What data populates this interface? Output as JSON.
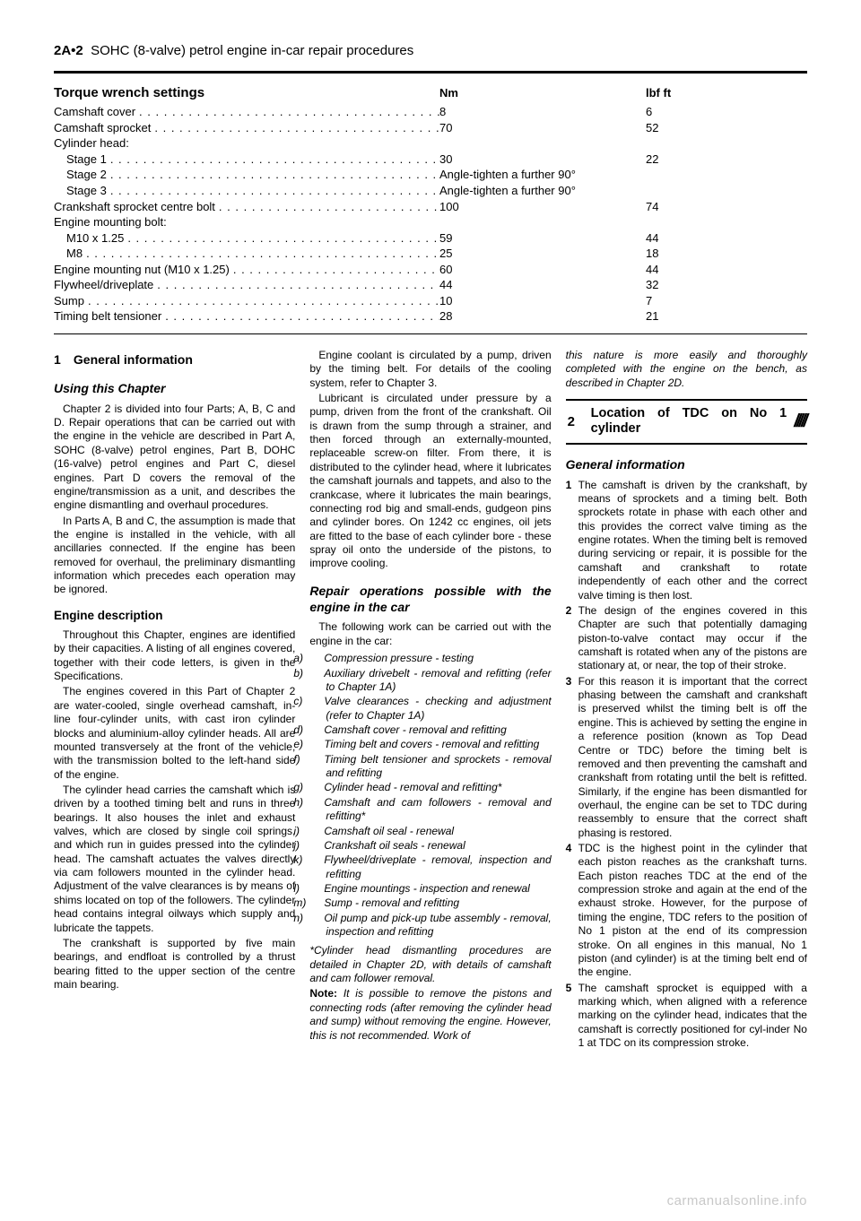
{
  "header": {
    "ref": "2A•2",
    "title": "SOHC (8-valve) petrol engine in-car repair procedures"
  },
  "torque": {
    "title": "Torque wrench settings",
    "col_nm": "Nm",
    "col_lb": "lbf ft",
    "rows": [
      {
        "label": "Camshaft cover",
        "nm": "8",
        "lb": "6",
        "dotted": true,
        "indent": 0
      },
      {
        "label": "Camshaft sprocket",
        "nm": "70",
        "lb": "52",
        "dotted": true,
        "indent": 0
      },
      {
        "label": "Cylinder head:",
        "nm": "",
        "lb": "",
        "dotted": false,
        "indent": 0
      },
      {
        "label": "Stage 1",
        "nm": "30",
        "lb": "22",
        "dotted": true,
        "indent": 1
      },
      {
        "label": "Stage 2",
        "nm": "Angle-tighten a further 90°",
        "lb": "",
        "dotted": true,
        "indent": 1
      },
      {
        "label": "Stage 3",
        "nm": "Angle-tighten a further 90°",
        "lb": "",
        "dotted": true,
        "indent": 1
      },
      {
        "label": "Crankshaft sprocket centre bolt",
        "nm": "100",
        "lb": "74",
        "dotted": true,
        "indent": 0
      },
      {
        "label": "Engine mounting bolt:",
        "nm": "",
        "lb": "",
        "dotted": false,
        "indent": 0
      },
      {
        "label": "M10 x 1.25",
        "nm": "59",
        "lb": "44",
        "dotted": true,
        "indent": 1
      },
      {
        "label": "M8",
        "nm": "25",
        "lb": "18",
        "dotted": true,
        "indent": 1
      },
      {
        "label": "Engine mounting nut (M10 x 1.25)",
        "nm": "60",
        "lb": "44",
        "dotted": true,
        "indent": 0
      },
      {
        "label": "Flywheel/driveplate",
        "nm": "44",
        "lb": "32",
        "dotted": true,
        "indent": 0
      },
      {
        "label": "Sump",
        "nm": "10",
        "lb": "7",
        "dotted": true,
        "indent": 0
      },
      {
        "label": "Timing belt tensioner",
        "nm": "28",
        "lb": "21",
        "dotted": true,
        "indent": 0
      }
    ]
  },
  "col1": {
    "s1_title": "General information",
    "s1_num": "1",
    "using_h": "Using this Chapter",
    "using_p1": "Chapter 2 is divided into four Parts; A, B, C and D. Repair operations that can be carried out with the engine in the vehicle are described in Part A, SOHC (8-valve) petrol engines, Part B, DOHC (16-valve) petrol engines and Part C, diesel engines. Part D covers the removal of the engine/transmission as a unit, and describes the engine dismantling and overhaul procedures.",
    "using_p2": "In Parts A, B and C, the assumption is made that the engine is installed in the vehicle, with all ancillaries connected. If the engine has been removed for overhaul, the preliminary dismantling information which precedes each operation may be ignored.",
    "eng_h": "Engine description",
    "eng_p1": "Throughout this Chapter, engines are identified by their capacities. A listing of all engines covered, together with their code letters, is given in the Specifications.",
    "eng_p2": "The engines covered in this Part of Chapter 2 are water-cooled, single overhead camshaft, in-line four-cylinder units, with cast iron cylinder blocks and aluminium-alloy cylinder heads. All are mounted transversely at the front of the vehicle, with the transmission bolted to the left-hand side of the engine.",
    "eng_p3": "The cylinder head carries the camshaft which is driven by a toothed timing belt and runs in three bearings. It also houses the inlet and exhaust valves, which are closed by single coil springs, and which run in guides pressed into the cylinder head. The camshaft actuates the valves directly via cam followers mounted in the cylinder head. Adjustment of the valve clearances is by means of shims located on top of the followers. The cylinder head contains integral oilways which supply and lubricate the tappets.",
    "eng_p4": "The crankshaft is supported by five main bearings, and endfloat is controlled by a thrust bearing fitted to the upper section of the centre main bearing."
  },
  "col2": {
    "p1": "Engine coolant is circulated by a pump, driven by the timing belt. For details of the cooling system, refer to Chapter 3.",
    "p2": "Lubricant is circulated under pressure by a pump, driven from the front of the crankshaft. Oil is drawn from the sump through a strainer, and then forced through an externally-mounted, replaceable screw-on filter. From there, it is distributed to the cylinder head, where it lubricates the camshaft journals and tappets, and also to the crankcase, where it lubricates the main bearings, connecting rod big and small-ends, gudgeon pins and cylinder bores. On 1242 cc engines, oil jets are fitted to the base of each cylinder bore - these spray oil onto the underside of the pistons, to improve cooling.",
    "rep_h": "Repair operations possible with the engine in the car",
    "rep_intro": "The following work can be carried out with the engine in the car:",
    "ops": [
      {
        "k": "a)",
        "t": "Compression pressure - testing"
      },
      {
        "k": "b)",
        "t": "Auxiliary drivebelt - removal and refitting (refer to Chapter 1A)"
      },
      {
        "k": "c)",
        "t": "Valve clearances - checking and adjustment (refer to Chapter 1A)"
      },
      {
        "k": "d)",
        "t": "Camshaft cover - removal and refitting"
      },
      {
        "k": "e)",
        "t": "Timing belt and covers - removal and refitting"
      },
      {
        "k": "f)",
        "t": "Timing belt tensioner and sprockets - removal and refitting"
      },
      {
        "k": "g)",
        "t": "Cylinder head - removal and refitting*"
      },
      {
        "k": "h)",
        "t": "Camshaft and cam followers - removal and refitting*"
      },
      {
        "k": "i)",
        "t": "Camshaft oil seal - renewal"
      },
      {
        "k": "j)",
        "t": "Crankshaft oil seals - renewal"
      },
      {
        "k": "k)",
        "t": "Flywheel/driveplate - removal, inspection and refitting"
      },
      {
        "k": "l)",
        "t": "Engine mountings - inspection and renewal"
      },
      {
        "k": "m)",
        "t": "Sump - removal and refitting"
      },
      {
        "k": "n)",
        "t": "Oil pump and pick-up tube assembly - removal, inspection and refitting"
      }
    ],
    "footnote": "*Cylinder head dismantling procedures are detailed in Chapter 2D, with details of camshaft and cam follower removal.",
    "note_label": "Note:",
    "note": " It is possible to remove the pistons and connecting rods (after removing the cylinder head and sump) without removing the engine. However, this is not recommended. Work of"
  },
  "col3": {
    "cont": "this nature is more easily and thoroughly completed with the engine on the bench, as described in Chapter 2D.",
    "s2_num": "2",
    "s2_title": "Location of TDC on No 1 cylinder",
    "gi_h": "General information",
    "gi1": "The camshaft is driven by the crankshaft, by means of sprockets and a timing belt. Both sprockets rotate in phase with each other and this provides the correct valve timing as the engine rotates. When the timing belt is removed during servicing or repair, it is possible for the camshaft and crankshaft to rotate independently of each other and the correct valve timing is then lost.",
    "gi2": "The design of the engines covered in this Chapter are such that potentially damaging piston-to-valve contact may occur if the camshaft is rotated when any of the pistons are stationary at, or near, the top of their stroke.",
    "gi3": "For this reason it is important that the correct phasing between the camshaft and crankshaft is preserved whilst the timing belt is off the engine. This is achieved by setting the engine in a reference position (known as Top Dead Centre or TDC) before the timing belt is removed and then preventing the camshaft and crankshaft from rotating until the belt is refitted. Similarly, if the engine has been dismantled for overhaul, the engine can be set to TDC during reassembly to ensure that the correct shaft phasing is restored.",
    "gi4": "TDC is the highest point in the cylinder that each piston reaches as the crankshaft turns. Each piston reaches TDC at the end of the compression stroke and again at the end of the exhaust stroke. However, for the purpose of timing the engine, TDC refers to the position of No 1 piston at the end of its compression stroke. On all engines in this manual, No 1 piston (and cylinder) is at the timing belt end of the engine.",
    "gi5": "The camshaft sprocket is equipped with a marking which, when aligned with a reference marking on the cylinder head, indicates that the camshaft is correctly positioned for cyl-inder No 1 at TDC on its compression stroke."
  },
  "watermark": "carmanualsonline.info"
}
